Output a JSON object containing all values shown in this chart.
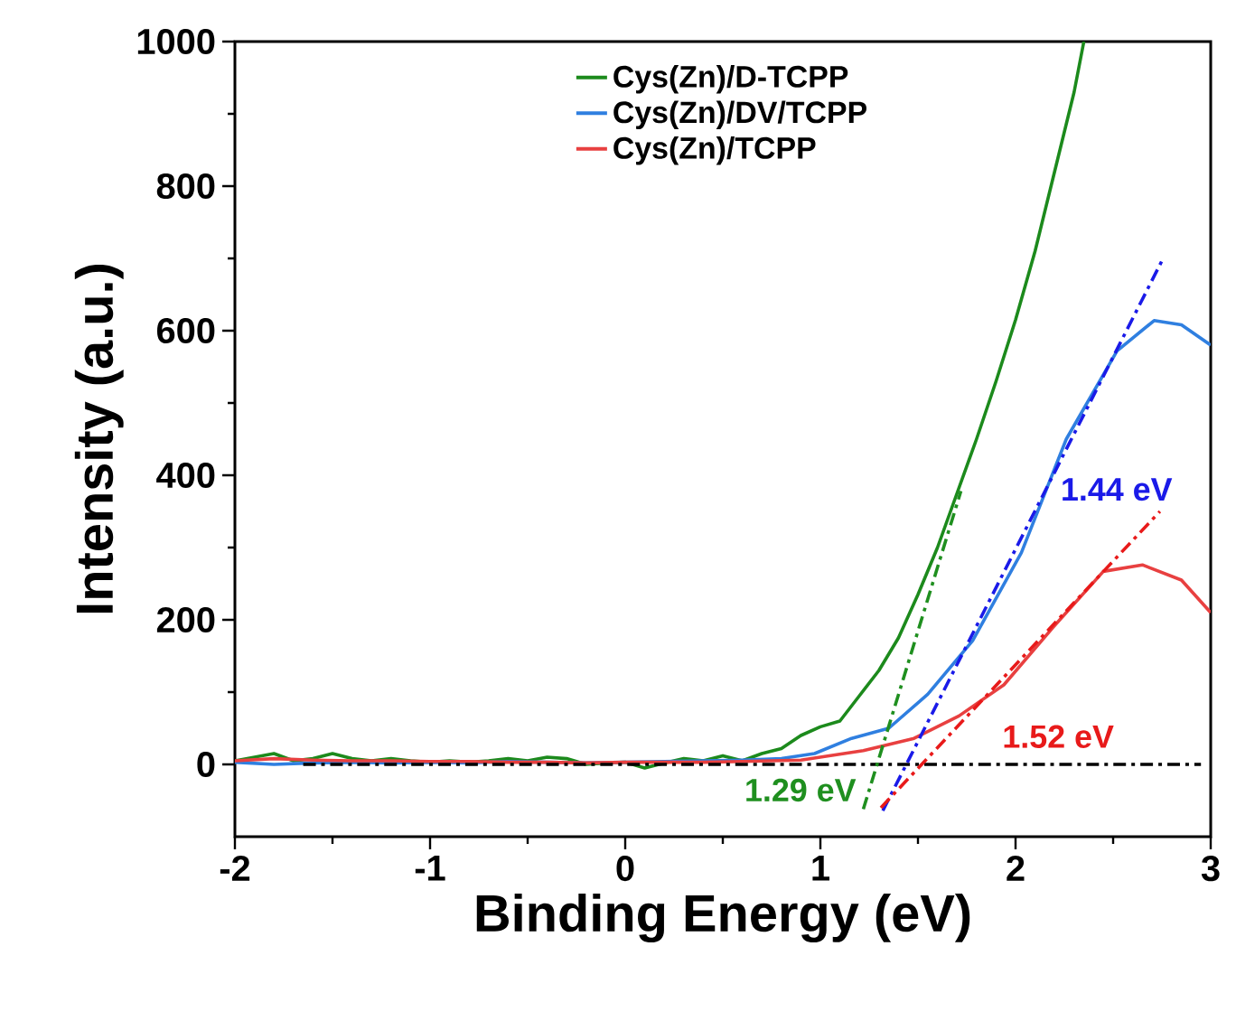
{
  "chart_data": {
    "type": "line",
    "xlabel": "Binding Energy (eV)",
    "ylabel": "Intensity (a.u.)",
    "xlim": [
      -2,
      3
    ],
    "ylim": [
      -100,
      1000
    ],
    "xticks": [
      -2,
      -1,
      0,
      1,
      2,
      3
    ],
    "yticks": [
      0,
      200,
      400,
      600,
      800,
      1000
    ],
    "legend": "top",
    "grid": false,
    "series": [
      {
        "name": "Cys(Zn)/D-TCPP",
        "color": "#1c8a1c",
        "x": [
          -2,
          -1.9,
          -1.8,
          -1.7,
          -1.6,
          -1.5,
          -1.4,
          -1.3,
          -1.2,
          -1.1,
          -1.0,
          -0.9,
          -0.8,
          -0.7,
          -0.6,
          -0.5,
          -0.4,
          -0.3,
          -0.2,
          -0.1,
          0,
          0.1,
          0.2,
          0.3,
          0.4,
          0.5,
          0.6,
          0.7,
          0.8,
          0.9,
          1.0,
          1.1,
          1.2,
          1.3,
          1.4,
          1.5,
          1.6,
          1.7,
          1.8,
          1.9,
          2.0,
          2.1,
          2.2,
          2.3,
          2.35
        ],
        "values": [
          5,
          10,
          15,
          5,
          8,
          15,
          8,
          5,
          8,
          5,
          3,
          5,
          3,
          5,
          8,
          5,
          10,
          8,
          0,
          2,
          3,
          -5,
          2,
          8,
          5,
          12,
          5,
          15,
          22,
          40,
          52,
          60,
          95,
          130,
          175,
          235,
          300,
          375,
          450,
          530,
          615,
          710,
          820,
          930,
          1000
        ]
      },
      {
        "name": "Cys(Zn)/DV/TCPP",
        "color": "#2f7fe0",
        "x": [
          -2,
          -1.8,
          -1.6,
          -1.4,
          -1.2,
          -1.0,
          -0.8,
          -0.6,
          -0.4,
          -0.2,
          0,
          0.2,
          0.4,
          0.6,
          0.8,
          0.97,
          1.16,
          1.35,
          1.55,
          1.78,
          2.03,
          2.26,
          2.52,
          2.71,
          2.85,
          3.0
        ],
        "values": [
          3,
          0,
          2,
          3,
          2,
          3,
          2,
          4,
          3,
          2,
          3,
          4,
          5,
          6,
          8,
          15,
          36,
          50,
          97,
          171,
          293,
          450,
          572,
          614,
          608,
          580
        ]
      },
      {
        "name": "Cys(Zn)/TCPP",
        "color": "#e84040",
        "x": [
          -2,
          -1.8,
          -1.6,
          -1.4,
          -1.2,
          -1.0,
          -0.8,
          -0.6,
          -0.4,
          -0.2,
          0,
          0.2,
          0.4,
          0.6,
          0.9,
          1.22,
          1.48,
          1.71,
          1.94,
          2.19,
          2.45,
          2.65,
          2.85,
          3.0
        ],
        "values": [
          5,
          8,
          6,
          5,
          5,
          4,
          4,
          3,
          3,
          2,
          3,
          3,
          3,
          4,
          6,
          19,
          36,
          67,
          110,
          189,
          267,
          276,
          255,
          210
        ]
      },
      {
        "type": "line",
        "line_style": "dashdot",
        "color": "#000000",
        "x": [
          -1.65,
          2.95
        ],
        "values": [
          0,
          0
        ]
      },
      {
        "type": "line",
        "line_style": "dashdot",
        "name": "1.29 eV",
        "color": "#1f8f1f",
        "x": [
          1.22,
          1.72
        ],
        "values": [
          -62,
          378
        ]
      },
      {
        "type": "line",
        "line_style": "dashdot",
        "name": "1.44 eV",
        "color": "#1a1ae8",
        "x": [
          1.32,
          2.76
        ],
        "values": [
          -64,
          702
        ]
      },
      {
        "type": "line",
        "line_style": "dashdot",
        "name": "1.52 eV",
        "color": "#e81a1a",
        "x": [
          1.31,
          2.74
        ],
        "values": [
          -60,
          350
        ]
      }
    ]
  }
}
